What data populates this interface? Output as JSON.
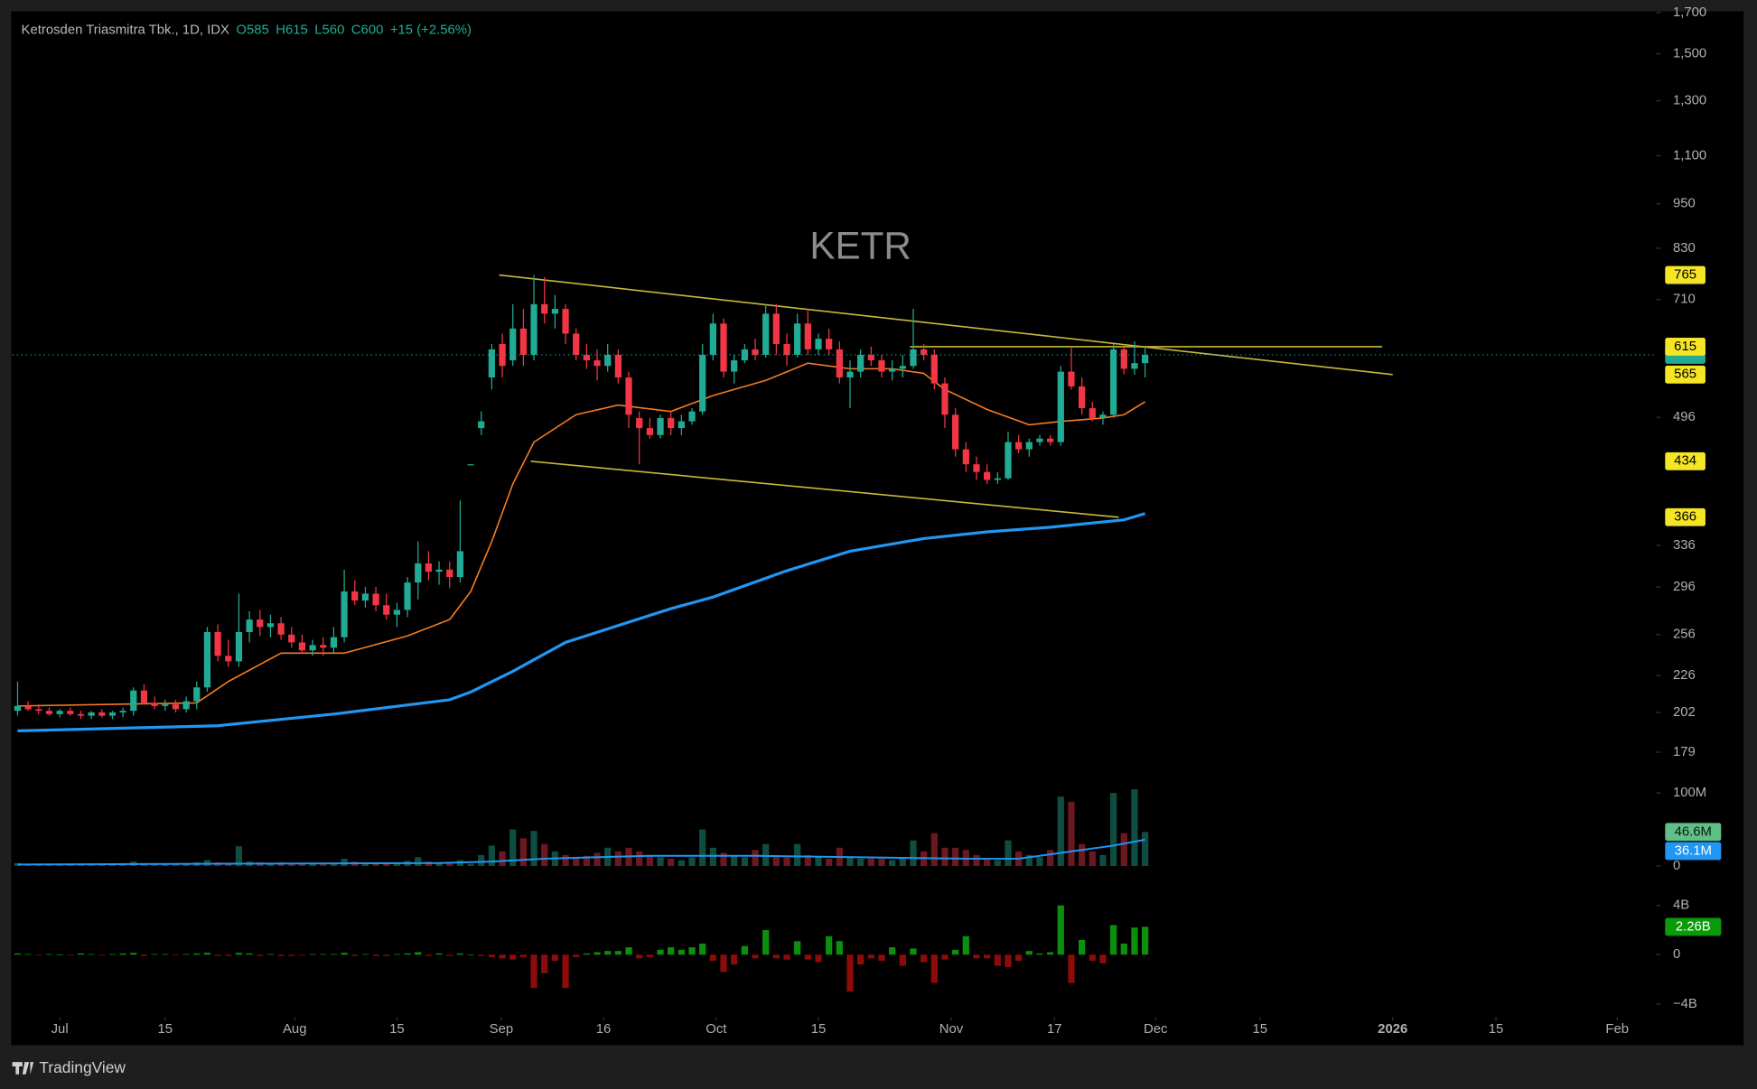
{
  "chart_data": {
    "type": "candlestick",
    "title": "KETR",
    "brand": "TradingView",
    "header": {
      "symbol": "Ketrosden Triasmitra Tbk., 1D, IDX",
      "ohlc_labels": [
        "O",
        "H",
        "L",
        "C"
      ],
      "change_label": "+15 (+2.56%)"
    },
    "log_scale": true,
    "up_color": "#22ab94",
    "down_color": "#f23645",
    "xlim": [
      -0.5,
      155.5
    ],
    "xticks": [
      {
        "value": 4,
        "label": "Jul"
      },
      {
        "value": 14,
        "label": "15"
      },
      {
        "value": 26.3,
        "label": "Aug"
      },
      {
        "value": 36,
        "label": "15"
      },
      {
        "value": 45.9,
        "label": "Sep"
      },
      {
        "value": 55.6,
        "label": "16"
      },
      {
        "value": 66.3,
        "label": "Oct"
      },
      {
        "value": 76,
        "label": "15"
      },
      {
        "value": 88.6,
        "label": "Nov"
      },
      {
        "value": 98.4,
        "label": "17"
      },
      {
        "value": 108,
        "label": "Dec"
      },
      {
        "value": 117.9,
        "label": "15"
      },
      {
        "value": 130.5,
        "label": "2026"
      },
      {
        "value": 140.3,
        "label": "15"
      },
      {
        "value": 151.8,
        "label": "Feb"
      }
    ],
    "ylim": [
      168,
      1707
    ],
    "yticks": [
      {
        "value": 1700,
        "label": "1,700"
      },
      {
        "value": 1500,
        "label": "1,500"
      },
      {
        "value": 1300,
        "label": "1,300"
      },
      {
        "value": 1100,
        "label": "1,100"
      },
      950,
      830,
      710,
      496,
      336,
      296,
      256,
      226,
      202,
      179
    ],
    "candles": [
      [
        203,
        222,
        200,
        206
      ],
      [
        206,
        209,
        203,
        204
      ],
      [
        204,
        207,
        201,
        203
      ],
      [
        203,
        205,
        200,
        201
      ],
      [
        201,
        204,
        199,
        203
      ],
      [
        203,
        205,
        200,
        201
      ],
      [
        201,
        203,
        198,
        200
      ],
      [
        200,
        203,
        198,
        202
      ],
      [
        202,
        204,
        199,
        200
      ],
      [
        200,
        203,
        198,
        202
      ],
      [
        202,
        205,
        199,
        203
      ],
      [
        203,
        218,
        200,
        216
      ],
      [
        216,
        220,
        207,
        208
      ],
      [
        208,
        212,
        204,
        206
      ],
      [
        206,
        210,
        203,
        207
      ],
      [
        207,
        210,
        202,
        204
      ],
      [
        204,
        212,
        202,
        209
      ],
      [
        209,
        222,
        204,
        218
      ],
      [
        218,
        262,
        215,
        258
      ],
      [
        258,
        264,
        236,
        240
      ],
      [
        240,
        252,
        232,
        236
      ],
      [
        236,
        290,
        232,
        258
      ],
      [
        258,
        275,
        250,
        268
      ],
      [
        268,
        276,
        255,
        262
      ],
      [
        262,
        272,
        254,
        265
      ],
      [
        265,
        270,
        252,
        256
      ],
      [
        256,
        262,
        246,
        250
      ],
      [
        250,
        256,
        242,
        244
      ],
      [
        244,
        252,
        240,
        248
      ],
      [
        248,
        254,
        240,
        246
      ],
      [
        246,
        262,
        242,
        254
      ],
      [
        254,
        312,
        250,
        292
      ],
      [
        292,
        302,
        280,
        284
      ],
      [
        284,
        296,
        278,
        290
      ],
      [
        290,
        296,
        275,
        280
      ],
      [
        280,
        290,
        268,
        272
      ],
      [
        272,
        282,
        262,
        276
      ],
      [
        276,
        305,
        270,
        300
      ],
      [
        300,
        340,
        285,
        318
      ],
      [
        318,
        330,
        302,
        310
      ],
      [
        310,
        320,
        298,
        312
      ],
      [
        312,
        320,
        295,
        305
      ],
      [
        305,
        385,
        300,
        330
      ],
      [
        430,
        430,
        430,
        430
      ],
      [
        480,
        505,
        470,
        490
      ],
      [
        560,
        620,
        540,
        610
      ],
      [
        620,
        640,
        560,
        580
      ],
      [
        590,
        700,
        580,
        650
      ],
      [
        650,
        690,
        580,
        600
      ],
      [
        600,
        765,
        590,
        700
      ],
      [
        700,
        760,
        660,
        680
      ],
      [
        680,
        720,
        650,
        690
      ],
      [
        690,
        700,
        620,
        640
      ],
      [
        640,
        650,
        590,
        600
      ],
      [
        600,
        620,
        575,
        590
      ],
      [
        590,
        610,
        555,
        580
      ],
      [
        580,
        620,
        570,
        600
      ],
      [
        600,
        610,
        550,
        560
      ],
      [
        560,
        570,
        480,
        500
      ],
      [
        495,
        505,
        430,
        480
      ],
      [
        480,
        495,
        465,
        470
      ],
      [
        470,
        500,
        465,
        495
      ],
      [
        495,
        505,
        470,
        480
      ],
      [
        480,
        500,
        470,
        490
      ],
      [
        490,
        510,
        485,
        505
      ],
      [
        505,
        620,
        500,
        600
      ],
      [
        600,
        680,
        590,
        660
      ],
      [
        660,
        670,
        560,
        570
      ],
      [
        570,
        600,
        550,
        590
      ],
      [
        590,
        620,
        585,
        610
      ],
      [
        610,
        630,
        590,
        600
      ],
      [
        600,
        700,
        595,
        680
      ],
      [
        680,
        700,
        600,
        620
      ],
      [
        620,
        640,
        580,
        600
      ],
      [
        600,
        680,
        595,
        660
      ],
      [
        660,
        690,
        600,
        610
      ],
      [
        610,
        640,
        600,
        630
      ],
      [
        630,
        650,
        600,
        610
      ],
      [
        610,
        625,
        550,
        560
      ],
      [
        560,
        590,
        510,
        570
      ],
      [
        570,
        610,
        560,
        600
      ],
      [
        600,
        615,
        580,
        590
      ],
      [
        590,
        600,
        560,
        570
      ],
      [
        570,
        590,
        555,
        575
      ],
      [
        575,
        600,
        560,
        580
      ],
      [
        580,
        690,
        575,
        610
      ],
      [
        610,
        620,
        590,
        600
      ],
      [
        600,
        610,
        540,
        550
      ],
      [
        550,
        560,
        480,
        500
      ],
      [
        500,
        510,
        440,
        450
      ],
      [
        450,
        460,
        420,
        430
      ],
      [
        430,
        440,
        410,
        420
      ],
      [
        420,
        430,
        405,
        410
      ],
      [
        410,
        420,
        405,
        412
      ],
      [
        412,
        475,
        410,
        460
      ],
      [
        460,
        470,
        445,
        450
      ],
      [
        450,
        465,
        440,
        460
      ],
      [
        460,
        470,
        455,
        465
      ],
      [
        465,
        470,
        455,
        460
      ],
      [
        460,
        580,
        455,
        570
      ],
      [
        570,
        615,
        540,
        545
      ],
      [
        545,
        560,
        500,
        510
      ],
      [
        510,
        520,
        490,
        495
      ],
      [
        495,
        505,
        485,
        500
      ],
      [
        500,
        620,
        495,
        610
      ],
      [
        610,
        615,
        565,
        575
      ],
      [
        575,
        625,
        565,
        585
      ],
      [
        585,
        615,
        560,
        600
      ]
    ],
    "overlays": [
      {
        "color": "#f57c1f",
        "width": 1.3,
        "x": [
          0,
          17,
          20,
          25,
          31,
          37,
          41,
          43,
          45,
          47,
          49,
          53,
          57,
          62,
          66,
          71,
          75,
          79,
          83,
          86,
          88,
          92,
          96,
          99,
          103,
          105,
          107
        ],
        "values": [
          206,
          208,
          222,
          242,
          242,
          255,
          268,
          292,
          340,
          405,
          460,
          500,
          515,
          505,
          530,
          555,
          585,
          575,
          575,
          567,
          540,
          508,
          485,
          490,
          495,
          500,
          520
        ]
      },
      {
        "color": "#2196f3",
        "width": 2.6,
        "x": [
          0,
          19,
          30,
          41,
          43,
          47,
          52,
          62,
          66,
          73,
          79,
          86,
          92,
          98,
          105,
          107
        ],
        "values": [
          191,
          194,
          201,
          210,
          215,
          229,
          250,
          277,
          287,
          311,
          330,
          343,
          350,
          355,
          363,
          370
        ]
      }
    ],
    "drawings": [
      {
        "color": "#c8b93a",
        "x": [
          45.7,
          130.5
        ],
        "y": [
          765,
          565
        ]
      },
      {
        "color": "#c8b93a",
        "x": [
          48.7,
          104.5
        ],
        "y": [
          434,
          366
        ]
      },
      {
        "color": "#c8b93a",
        "x": [
          84.7,
          129.5
        ],
        "y": [
          615,
          615
        ]
      }
    ],
    "volume": {
      "ylim": [
        0,
        112
      ],
      "yticks": [
        {
          "value": 100,
          "label": "100M"
        },
        0
      ],
      "values": [
        4,
        2,
        3,
        2,
        3,
        2,
        2,
        3,
        2,
        2,
        3,
        6,
        4,
        2,
        2,
        2,
        3,
        5,
        8,
        5,
        4,
        27,
        6,
        5,
        4,
        5,
        4,
        4,
        3,
        4,
        4,
        10,
        6,
        5,
        5,
        4,
        4,
        7,
        12,
        6,
        5,
        5,
        8,
        3,
        15,
        28,
        20,
        50,
        38,
        48,
        30,
        20,
        15,
        12,
        14,
        18,
        25,
        20,
        25,
        20,
        15,
        12,
        10,
        8,
        12,
        50,
        25,
        18,
        15,
        12,
        22,
        30,
        15,
        12,
        30,
        15,
        12,
        10,
        25,
        12,
        10,
        10,
        10,
        8,
        12,
        35,
        20,
        45,
        25,
        25,
        22,
        15,
        10,
        8,
        35,
        20,
        15,
        12,
        22,
        95,
        88,
        30,
        20,
        15,
        100,
        45,
        105,
        46.6
      ],
      "last_label": "46.6M",
      "ma": {
        "color": "#2196f3",
        "x": [
          0,
          20,
          40,
          45,
          50,
          60,
          70,
          80,
          90,
          95,
          100,
          104,
          107
        ],
        "values": [
          2,
          3,
          4,
          6,
          10,
          14,
          14,
          12,
          10,
          10,
          20,
          28,
          36.1
        ],
        "last_label": "36.1M"
      }
    },
    "flow": {
      "ylim": [
        -4.8,
        5.2
      ],
      "yticks": [
        {
          "value": 4,
          "label": "4B"
        },
        0,
        {
          "value": -4,
          "label": "−4B"
        }
      ],
      "up_color": "#0c8f0c",
      "down_color": "#8e0b0b",
      "values": [
        0.1,
        0.05,
        -0.05,
        0.05,
        0,
        -0.05,
        0.1,
        0.05,
        -0.05,
        0.05,
        0.1,
        0.15,
        -0.1,
        0.05,
        0.05,
        -0.05,
        0.05,
        0.1,
        0.15,
        -0.1,
        -0.1,
        0.15,
        0.1,
        -0.1,
        0.05,
        -0.1,
        -0.1,
        -0.05,
        0.05,
        0.05,
        0.05,
        0.15,
        -0.1,
        0.05,
        -0.1,
        -0.1,
        0.05,
        0.1,
        0.2,
        -0.1,
        0.1,
        -0.1,
        0.1,
        0,
        -0.1,
        -0.2,
        -0.3,
        -0.4,
        -0.2,
        -2.7,
        -1.5,
        -0.5,
        -2.7,
        -0.2,
        0.1,
        0.2,
        0.3,
        0.3,
        0.6,
        -0.3,
        -0.2,
        0.4,
        0.6,
        0.4,
        0.6,
        0.9,
        -0.5,
        -1.4,
        -0.8,
        0.7,
        -0.3,
        2.0,
        -0.3,
        -0.4,
        1.1,
        -0.4,
        -0.6,
        1.5,
        1.1,
        -3.0,
        -0.8,
        -0.3,
        -0.5,
        0.6,
        -0.9,
        0.5,
        -0.6,
        -2.3,
        -0.4,
        0.4,
        1.5,
        -0.3,
        -0.3,
        -0.9,
        -1.0,
        -0.5,
        0.3,
        0.1,
        0.2,
        4.0,
        -2.3,
        1.2,
        -0.5,
        -0.7,
        2.4,
        0.9,
        2.2,
        2.26
      ],
      "last_label": "2.26B"
    }
  }
}
